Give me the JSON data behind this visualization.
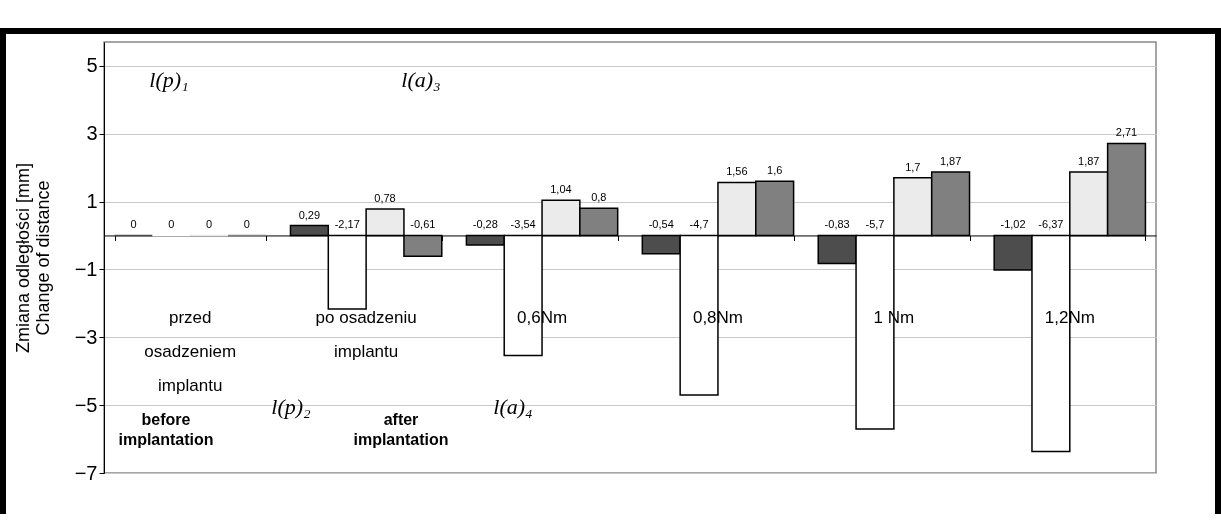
{
  "chart_data": {
    "type": "bar",
    "ylabel": "Zmiana odległości [mm]\nChange of distance",
    "categories": [
      "przed osadzeniem implantu",
      "po osadzeniu implantu",
      "0,6Nm",
      "0,8Nm",
      "1 Nm",
      "1,2Nm"
    ],
    "series": [
      {
        "color": "#4d4d4d",
        "values": [
          0,
          0.29,
          -0.28,
          -0.54,
          -0.83,
          -1.02
        ],
        "value_labels": [
          "0",
          "0,29",
          "-0,28",
          "-0,54",
          "-0,83",
          "-1,02"
        ]
      },
      {
        "color": "#ffffff",
        "values": [
          0,
          -2.17,
          -3.54,
          -4.7,
          -5.7,
          -6.37
        ],
        "value_labels": [
          "0",
          "-2,17",
          "-3,54",
          "-4,7",
          "-5,7",
          "-6,37"
        ]
      },
      {
        "color": "#ebebeb",
        "values": [
          0,
          0.78,
          1.04,
          1.56,
          1.7,
          1.87
        ],
        "value_labels": [
          "0",
          "0,78",
          "1,04",
          "1,56",
          "1,7",
          "1,87"
        ]
      },
      {
        "color": "#808080",
        "values": [
          0,
          -0.61,
          0.8,
          1.6,
          1.87,
          2.71
        ],
        "value_labels": [
          "0",
          "-0,61",
          "0,8",
          "1,6",
          "1,87",
          "2,71"
        ]
      }
    ],
    "ylim": [
      -7,
      5.7
    ],
    "yticks": [
      5,
      3,
      1,
      -1,
      -3,
      -5,
      -7
    ],
    "grid": "y",
    "legend": false,
    "annotations": [
      "l(p)₁",
      "l(a)₃",
      "l(p)₂",
      "l(a)₄",
      "before implantation",
      "after implantation"
    ]
  }
}
